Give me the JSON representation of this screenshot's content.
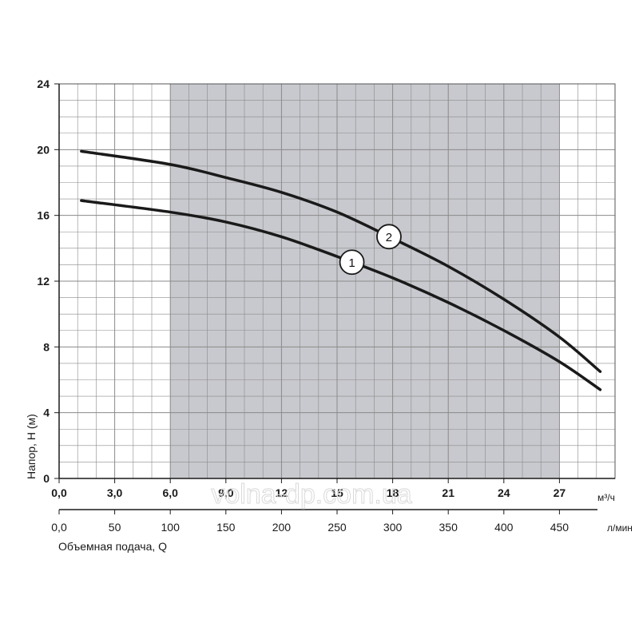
{
  "chart_data": {
    "type": "line",
    "xlabel": "Объемная подача, Q",
    "ylabel": "Напор, H (м)",
    "x_unit": "м³/ч",
    "x2_unit": "л/мин",
    "xlim": [
      0,
      30
    ],
    "ylim": [
      0,
      24
    ],
    "x_ticks": [
      "0,0",
      "3,0",
      "6,0",
      "9,0",
      "12",
      "15",
      "18",
      "21",
      "24",
      "27"
    ],
    "x2_ticks": [
      "0,0",
      "50",
      "100",
      "150",
      "200",
      "250",
      "300",
      "350",
      "400",
      "450"
    ],
    "y_ticks": [
      "0",
      "4",
      "8",
      "12",
      "16",
      "20",
      "24"
    ],
    "grid": true,
    "operating_range": [
      6,
      27
    ],
    "series": [
      {
        "name": "1",
        "x": [
          1.2,
          6,
          9,
          12,
          15,
          18,
          21,
          24,
          27,
          29.2
        ],
        "y": [
          16.9,
          16.2,
          15.6,
          14.7,
          13.5,
          12.2,
          10.7,
          9.0,
          7.1,
          5.4
        ]
      },
      {
        "name": "2",
        "x": [
          1.2,
          6,
          9,
          12,
          15,
          18,
          21,
          24,
          27,
          29.2
        ],
        "y": [
          19.9,
          19.1,
          18.3,
          17.4,
          16.2,
          14.6,
          12.9,
          10.9,
          8.6,
          6.5
        ]
      }
    ],
    "watermark": "volna-dp.com.ua",
    "colors": {
      "line": "#1a1a1a",
      "shade": "#c8c9ce",
      "grid": "#8a8a8a"
    }
  }
}
